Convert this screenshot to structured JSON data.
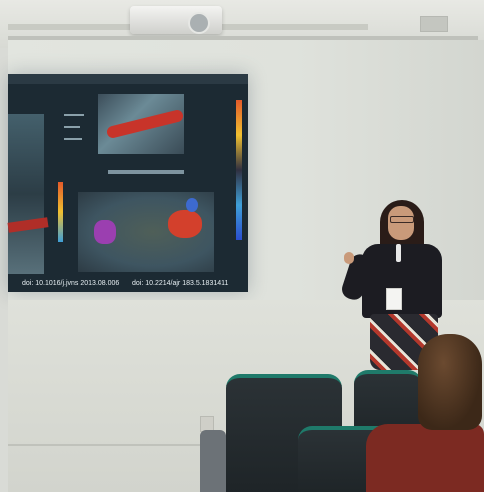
{
  "slide": {
    "citation_left": "doi: 10.1016/j.jvns 2013.08.006",
    "citation_right": "doi: 10.2214/ajr 183.5.1831411"
  }
}
